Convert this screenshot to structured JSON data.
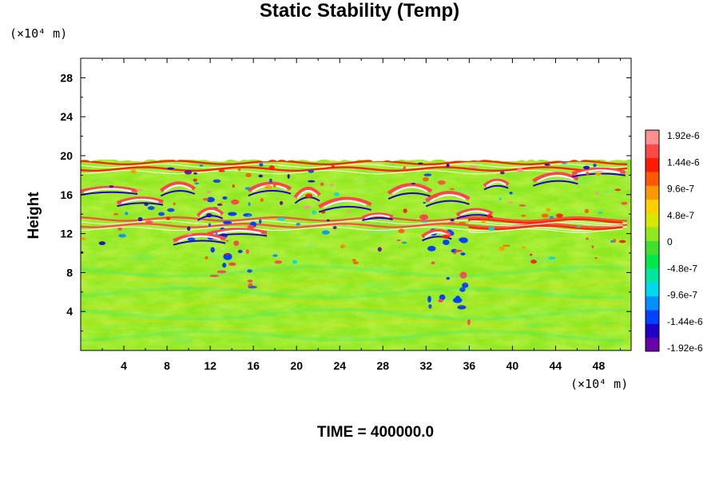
{
  "chart_data": {
    "type": "heatmap",
    "title": "Static Stability (Temp)",
    "ylabel": "Height",
    "xlabel": "",
    "x_unit": "(×10⁴ m)",
    "y_unit": "(×10⁴ m)",
    "xlim": [
      0,
      51
    ],
    "ylim": [
      0,
      30
    ],
    "x_ticks": [
      4,
      8,
      12,
      16,
      20,
      24,
      28,
      32,
      36,
      40,
      44,
      48
    ],
    "y_ticks": [
      4,
      8,
      12,
      16,
      20,
      24,
      28
    ],
    "data_top": 19.6,
    "colorbar": {
      "range": [
        -1.92e-06,
        1.92e-06
      ],
      "tick_labels": [
        "1.92e-6",
        "1.44e-6",
        "9.6e-7",
        "4.8e-7",
        "0",
        "-4.8e-7",
        "-9.6e-7",
        "-1.44e-6",
        "-1.92e-6"
      ],
      "colors": [
        "#6a00a8",
        "#2000c8",
        "#0040ff",
        "#0090ff",
        "#00d8f0",
        "#00e8a0",
        "#00e84a",
        "#40e030",
        "#90e820",
        "#d8e800",
        "#ffd000",
        "#ff9800",
        "#ff5a00",
        "#ff1a00",
        "#ff4848",
        "#ff9090"
      ]
    },
    "features": [
      {
        "name": "warm-band",
        "x": [
          0,
          51
        ],
        "y": 13.0,
        "value": 1.6e-06
      },
      {
        "name": "warm-band",
        "x": [
          36,
          51
        ],
        "y": 12.8,
        "value": 1.3e-06
      },
      {
        "name": "warm-band",
        "x": [
          0,
          51
        ],
        "y": 18.8,
        "value": 1.4e-06
      },
      {
        "name": "cold-plume",
        "x": [
          12,
          16
        ],
        "y": [
          6,
          16
        ],
        "value": -1.4e-06
      },
      {
        "name": "cold-plume",
        "x": [
          31,
          36
        ],
        "y": [
          2,
          14
        ],
        "value": -1.3e-06
      }
    ],
    "grid": false,
    "legend": "colorbar-right"
  },
  "footer": {
    "time_label": "TIME = 400000.0"
  }
}
